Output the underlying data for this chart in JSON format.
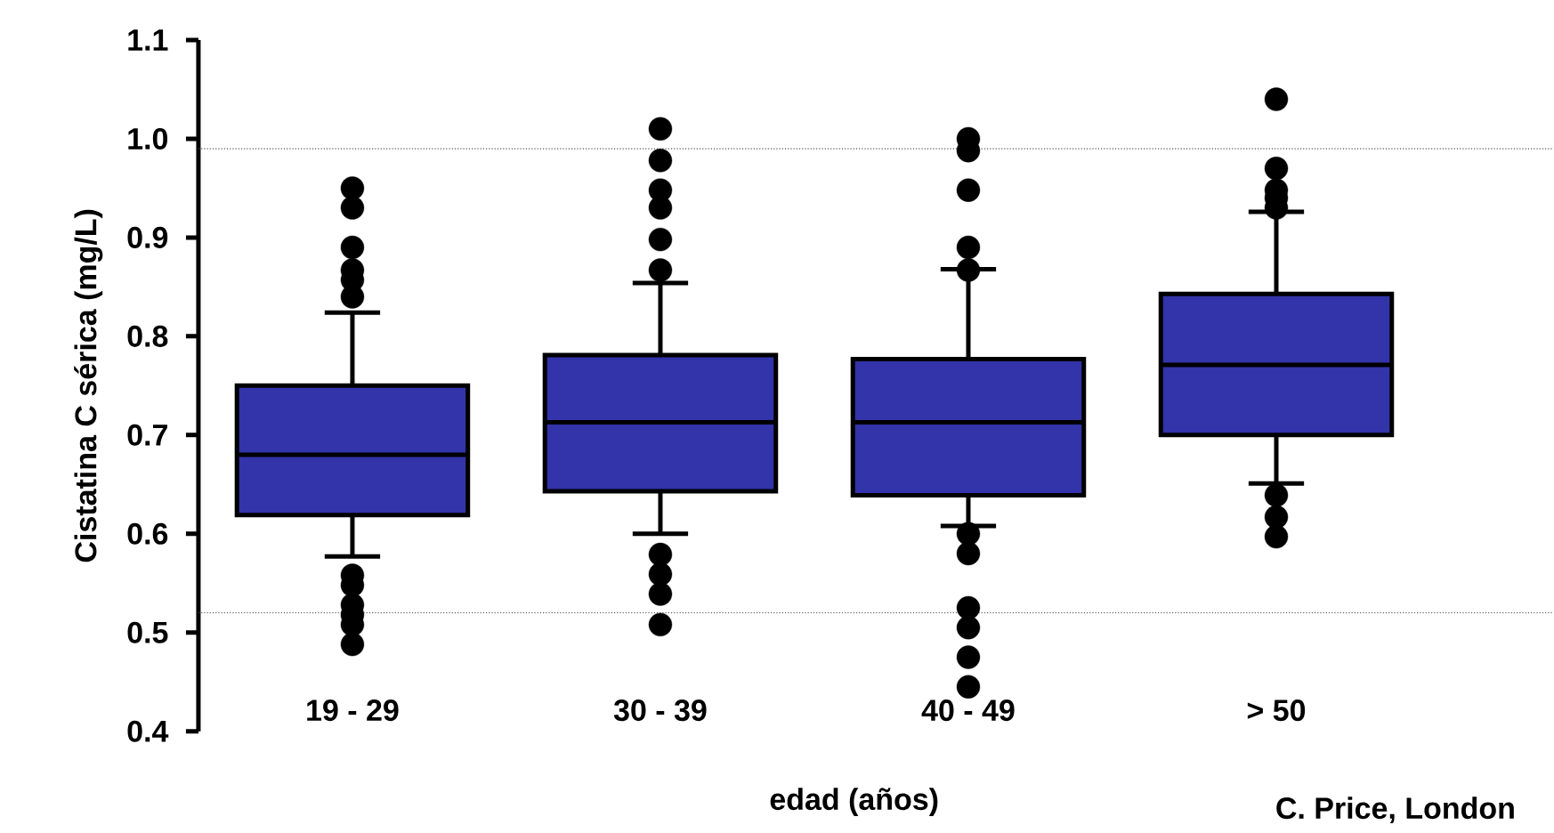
{
  "chart_data": {
    "type": "box",
    "xlabel": "edad (años)",
    "ylabel": "Cistatina C sérica (mg/L)",
    "categories": [
      "19 - 29",
      "30 - 39",
      "40 - 49",
      "> 50"
    ],
    "color": "#3333aa",
    "marker": "circle",
    "grid": false,
    "boxes": [
      {
        "low": 0.577,
        "q1": 0.619,
        "median": 0.68,
        "q3": 0.75,
        "high": 0.824,
        "outliers": [
          0.95,
          0.93,
          0.89,
          0.867,
          0.857,
          0.84,
          0.558,
          0.548,
          0.528,
          0.518,
          0.508,
          0.488
        ]
      },
      {
        "low": 0.6,
        "q1": 0.643,
        "median": 0.713,
        "q3": 0.781,
        "high": 0.854,
        "outliers": [
          1.01,
          0.978,
          0.948,
          0.93,
          0.898,
          0.867,
          0.579,
          0.559,
          0.539,
          0.508
        ]
      },
      {
        "low": 0.608,
        "q1": 0.639,
        "median": 0.713,
        "q3": 0.777,
        "high": 0.868,
        "outliers": [
          1.0,
          0.988,
          0.948,
          0.89,
          0.867,
          0.6,
          0.58,
          0.525,
          0.505,
          0.475,
          0.445
        ]
      },
      {
        "low": 0.651,
        "q1": 0.7,
        "median": 0.771,
        "q3": 0.843,
        "high": 0.926,
        "outliers": [
          1.04,
          0.97,
          0.948,
          0.94,
          0.93,
          0.639,
          0.617,
          0.597
        ]
      }
    ],
    "ylim": [
      0.4,
      1.1
    ],
    "yticks": [
      {
        "value": 0.4,
        "label": "0.4"
      },
      {
        "value": 0.5,
        "label": "0.5"
      },
      {
        "value": 0.6,
        "label": "0.6"
      },
      {
        "value": 0.7,
        "label": "0.7"
      },
      {
        "value": 0.8,
        "label": "0.8"
      },
      {
        "value": 0.9,
        "label": "0.9"
      },
      {
        "value": 1.0,
        "label": "1.0"
      },
      {
        "value": 1.1,
        "label": "1.1"
      }
    ],
    "ref_lines": [
      {
        "axis": "y",
        "value": 0.99,
        "line_style": "dotted",
        "color": "#555555"
      },
      {
        "axis": "y",
        "value": 0.52,
        "line_style": "dotted",
        "color": "#555555"
      }
    ],
    "annotations": [
      "C. Price, London"
    ]
  }
}
